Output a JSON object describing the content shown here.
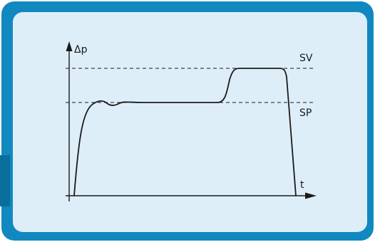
{
  "colors": {
    "outer_border": "#1189c0",
    "panel_fill": "#deeef8",
    "curve": "#1a1a1a",
    "axis": "#1a1a1a",
    "reference_line": "#1a1a1a"
  },
  "diagram": {
    "y_axis_label": "Δp",
    "x_axis_label": "t",
    "reference_lines": [
      {
        "label": "SV",
        "style": "dashed"
      },
      {
        "label": "SP",
        "style": "dashed"
      }
    ],
    "curve": {
      "description_levels": [
        "zero",
        "SP",
        "SV",
        "zero"
      ]
    }
  }
}
